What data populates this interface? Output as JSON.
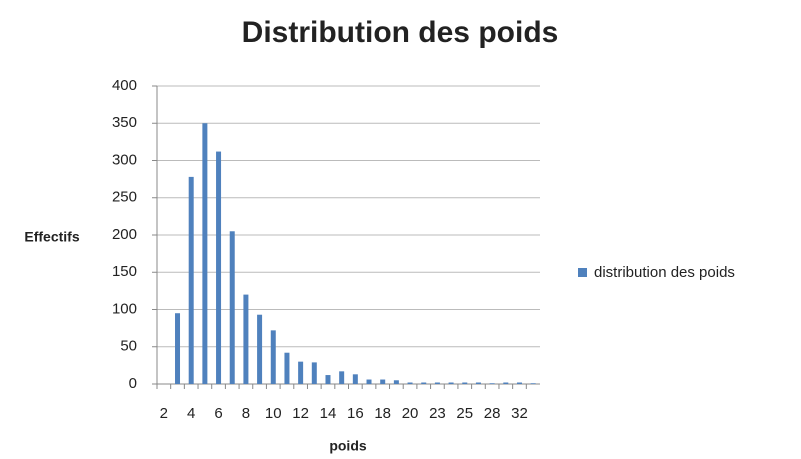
{
  "chart_data": {
    "type": "bar",
    "title": "Distribution des poids",
    "x_label": "poids",
    "y_label": "Effectifs",
    "categories": [
      "2",
      null,
      "4",
      null,
      "6",
      null,
      "8",
      null,
      "10",
      null,
      "12",
      null,
      "14",
      null,
      "16",
      null,
      "18",
      null,
      "20",
      null,
      "23",
      null,
      "25",
      null,
      "28",
      null,
      "32",
      null
    ],
    "series": [
      {
        "name": "distribution des poids",
        "color": "#4f81bd",
        "values": [
          0,
          95,
          278,
          350,
          312,
          205,
          120,
          93,
          72,
          42,
          30,
          29,
          12,
          17,
          13,
          6,
          6,
          5,
          2,
          2,
          2,
          2,
          2,
          2,
          1,
          2,
          2,
          1
        ]
      }
    ],
    "ylim": [
      0,
      400
    ],
    "yticks": [
      0,
      50,
      100,
      150,
      200,
      250,
      300,
      350,
      400
    ],
    "grid": true,
    "legend": "right"
  }
}
